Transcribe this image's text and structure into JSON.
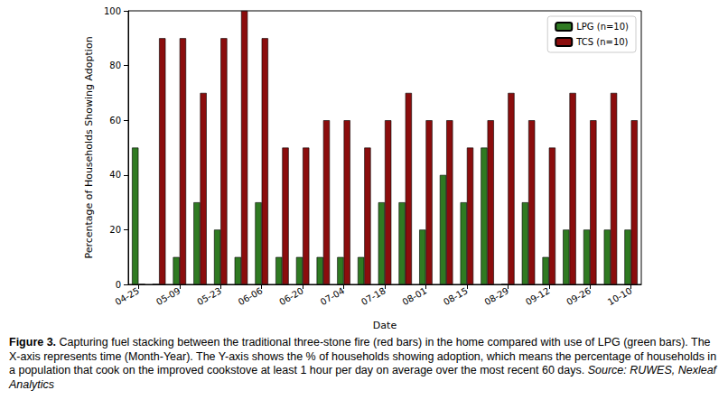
{
  "chart_data": {
    "type": "bar",
    "x_label": "Date",
    "y_label": "Percentage of Households Showing Adoption",
    "categories": [
      "04-25",
      null,
      "05-09",
      null,
      "05-23",
      null,
      "06-06",
      null,
      "06-20",
      null,
      "07-04",
      null,
      "07-18",
      null,
      "08-01",
      null,
      "08-15",
      null,
      "08-29",
      null,
      "09-12",
      null,
      "09-26",
      null,
      "10-10"
    ],
    "series": [
      {
        "name": "LPG (n=10)",
        "color": "#2f7a22",
        "values": [
          50,
          0,
          10,
          30,
          20,
          10,
          30,
          10,
          10,
          10,
          10,
          10,
          30,
          30,
          20,
          40,
          30,
          50,
          0,
          30,
          10,
          20,
          20,
          20,
          20
        ]
      },
      {
        "name": "TCS (n=10)",
        "color": "#8b0d0d",
        "values": [
          0,
          90,
          90,
          70,
          90,
          100,
          90,
          50,
          50,
          60,
          60,
          50,
          60,
          70,
          60,
          60,
          50,
          60,
          70,
          60,
          50,
          70,
          60,
          70,
          60
        ]
      }
    ],
    "ylim": [
      0,
      100
    ],
    "yticks": [
      0,
      20,
      40,
      60,
      80,
      100
    ],
    "grid": false,
    "legend": "upper right",
    "caption": {
      "label": "Figure 3.",
      "text": "Capturing fuel stacking between the traditional three-stone fire (red bars) in the home compared with use of LPG (green bars).  The X-axis represents time (Month-Year). The Y-axis shows the % of households showing adoption, which means the percentage of households in a population that cook on the improved cookstove at least 1 hour per day on average over the most recent 60 days.",
      "source": "Source: RUWES, Nexleaf Analytics"
    }
  }
}
